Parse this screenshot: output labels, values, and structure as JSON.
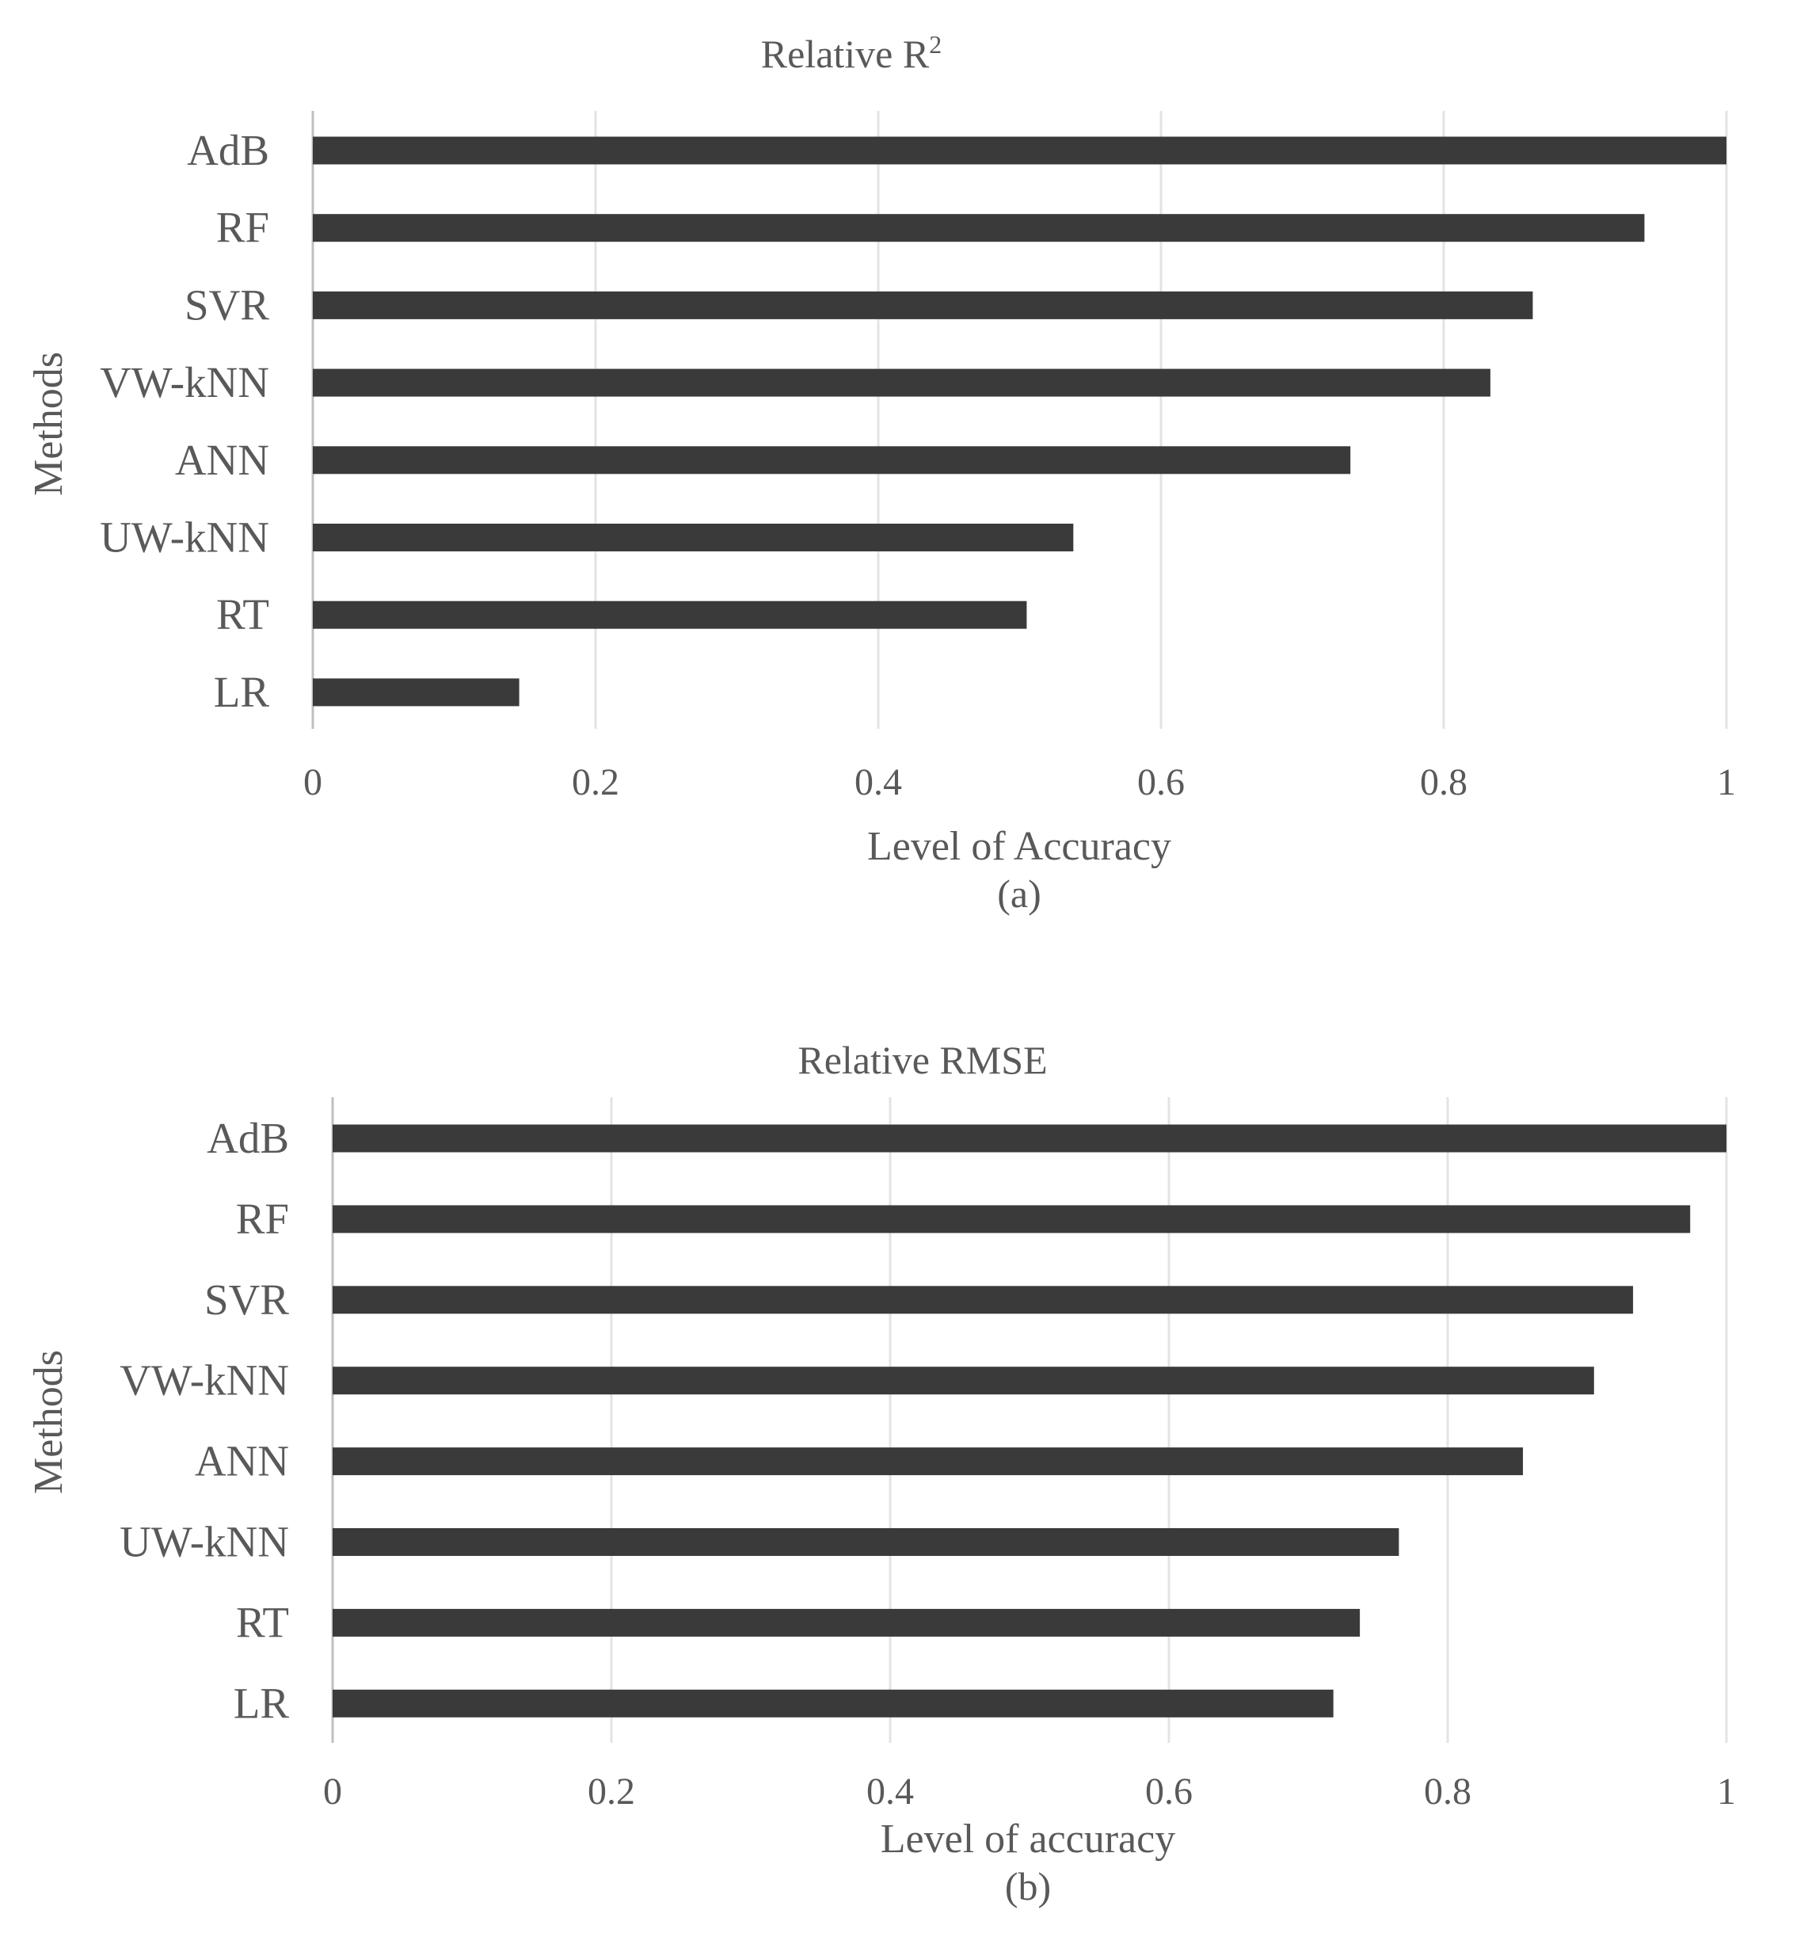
{
  "chart_data": [
    {
      "type": "bar",
      "orientation": "horizontal",
      "title": "Relative R",
      "title_superscript": "2",
      "xlabel": "Level of Accuracy",
      "ylabel": "Methods",
      "panel_label": "(a)",
      "categories": [
        "AdB",
        "RF",
        "SVR",
        "VW-kNN",
        "ANN",
        "UW-kNN",
        "RT",
        "LR"
      ],
      "values": [
        1.0,
        0.942,
        0.863,
        0.833,
        0.734,
        0.538,
        0.505,
        0.146
      ],
      "xlim": [
        0,
        1
      ],
      "xticks": [
        0,
        0.2,
        0.4,
        0.6,
        0.8,
        1
      ],
      "xtick_labels": [
        "0",
        "0.2",
        "0.4",
        "0.6",
        "0.8",
        "1"
      ],
      "grid": true,
      "legend": "none",
      "bar_color": "#3a3a3a"
    },
    {
      "type": "bar",
      "orientation": "horizontal",
      "title": "Relative RMSE",
      "xlabel": "Level of accuracy",
      "ylabel": "Methods",
      "panel_label": "(b)",
      "categories": [
        "AdB",
        "RF",
        "SVR",
        "VW-kNN",
        "ANN",
        "UW-kNN",
        "RT",
        "LR"
      ],
      "values": [
        1.0,
        0.974,
        0.933,
        0.905,
        0.854,
        0.765,
        0.737,
        0.718
      ],
      "xlim": [
        0,
        1
      ],
      "xticks": [
        0,
        0.2,
        0.4,
        0.6,
        0.8,
        1
      ],
      "xtick_labels": [
        "0",
        "0.2",
        "0.4",
        "0.6",
        "0.8",
        "1"
      ],
      "grid": true,
      "legend": "none",
      "bar_color": "#3a3a3a"
    }
  ]
}
